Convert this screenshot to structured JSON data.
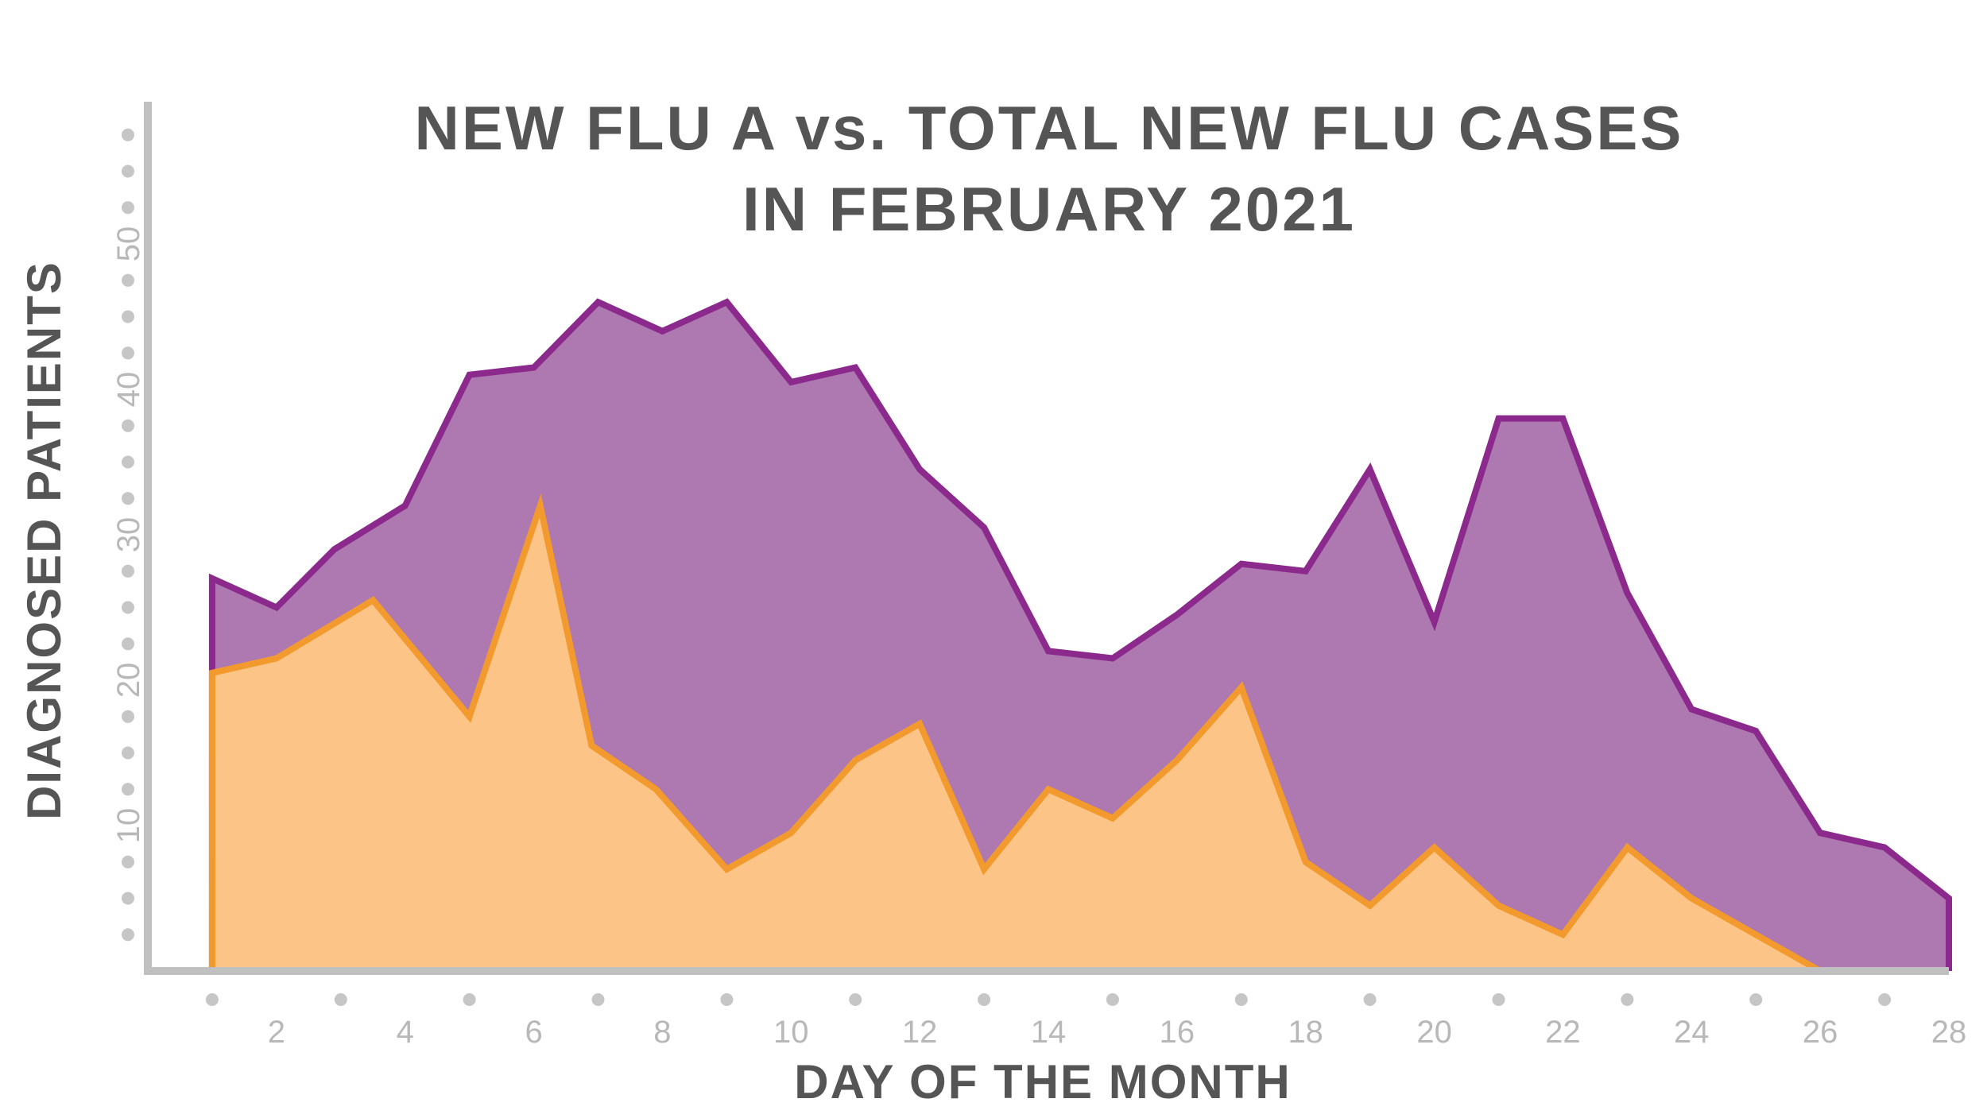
{
  "chart_data": {
    "type": "area",
    "title_lines": [
      "NEW FLU A vs. TOTAL NEW FLU CASES",
      "IN FEBRUARY 2021"
    ],
    "xlabel": "DAY OF THE MONTH",
    "ylabel": "DIAGNOSED PATIENTS",
    "xlim": [
      0,
      28
    ],
    "ylim": [
      0,
      58
    ],
    "x_ticks": [
      2,
      4,
      6,
      8,
      10,
      12,
      14,
      16,
      18,
      20,
      22,
      24,
      26,
      28
    ],
    "y_ticks": [
      10,
      20,
      30,
      40,
      50
    ],
    "grid": false,
    "legend": "none",
    "series": [
      {
        "key": "total",
        "color": "#8b2a8c",
        "fill": "#ae78b0",
        "points": [
          [
            1,
            27
          ],
          [
            2,
            25
          ],
          [
            2.9,
            29
          ],
          [
            4,
            32
          ],
          [
            5,
            41
          ],
          [
            6,
            41.5
          ],
          [
            7,
            46
          ],
          [
            8,
            44
          ],
          [
            9,
            46
          ],
          [
            10,
            40.5
          ],
          [
            11,
            41.5
          ],
          [
            12,
            34.5
          ],
          [
            13,
            30.5
          ],
          [
            14,
            22
          ],
          [
            15,
            21.5
          ],
          [
            16,
            24.5
          ],
          [
            17,
            28
          ],
          [
            18,
            27.5
          ],
          [
            19,
            34.5
          ],
          [
            20,
            24
          ],
          [
            21,
            38
          ],
          [
            22,
            38
          ],
          [
            23,
            26
          ],
          [
            24,
            18
          ],
          [
            25,
            16.5
          ],
          [
            26,
            9.5
          ],
          [
            27,
            8.5
          ],
          [
            28,
            5
          ]
        ]
      },
      {
        "key": "flu_a",
        "color": "#f29a2e",
        "fill": "#fcc587",
        "points": [
          [
            1,
            20.5
          ],
          [
            2,
            21.5
          ],
          [
            3.5,
            25.5
          ],
          [
            5,
            17.5
          ],
          [
            6.1,
            32
          ],
          [
            6.9,
            15.5
          ],
          [
            7.9,
            12.5
          ],
          [
            9,
            7
          ],
          [
            10,
            9.5
          ],
          [
            11,
            14.5
          ],
          [
            12,
            17
          ],
          [
            13,
            7
          ],
          [
            14,
            12.5
          ],
          [
            15,
            10.5
          ],
          [
            16,
            14.5
          ],
          [
            17,
            19.5
          ],
          [
            18,
            7.5
          ],
          [
            19,
            4.5
          ],
          [
            20,
            8.5
          ],
          [
            21,
            4.5
          ],
          [
            22,
            2.5
          ],
          [
            23,
            8.5
          ],
          [
            24,
            5
          ],
          [
            25,
            2.5
          ],
          [
            26,
            0
          ]
        ]
      }
    ]
  },
  "style": {
    "title_color": "#555555",
    "axis_title_color": "#555555",
    "axis_color": "#c0c0c0",
    "tick_label_color": "#b8b8b8",
    "dot_color": "#c6c6c6"
  }
}
